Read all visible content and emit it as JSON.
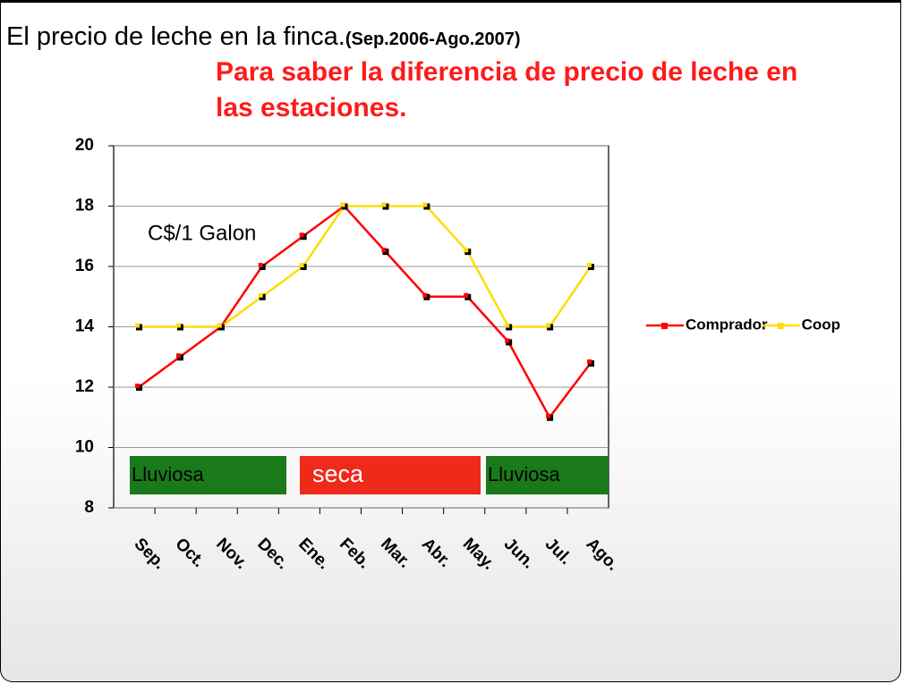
{
  "chart_data": {
    "type": "line",
    "title": "El precio de leche en la finca.",
    "subtitle": "(Sep.2006-Ago.2007)",
    "heading": "Para saber la diferencia de precio de leche en las estaciones.",
    "annotation": "C$/1 Galon",
    "categories": [
      "Sep.",
      "Oct.",
      "Nov.",
      "Dec.",
      "Ene.",
      "Feb.",
      "Mar.",
      "Abr.",
      "May.",
      "Jun.",
      "Jul.",
      "Ago."
    ],
    "series": [
      {
        "name": "Comprador",
        "color": "#ff0000",
        "values": [
          12,
          13,
          14,
          16,
          17,
          18,
          16.5,
          15,
          15,
          13.5,
          11,
          12.8
        ]
      },
      {
        "name": "Coop",
        "color": "#ffdd00",
        "values": [
          14,
          14,
          14,
          15,
          16,
          18,
          18,
          18,
          16.5,
          14,
          14,
          16
        ]
      }
    ],
    "seasons": [
      {
        "label": "Lluviosa",
        "color": "#1a7a1a"
      },
      {
        "label": "seca",
        "color": "#ee2a1a"
      },
      {
        "label": "Lluviosa",
        "color": "#1a7a1a"
      }
    ],
    "ylim": [
      8,
      20
    ],
    "yticks": [
      8,
      10,
      12,
      14,
      16,
      18,
      20
    ],
    "grid": true,
    "legend": "right"
  }
}
